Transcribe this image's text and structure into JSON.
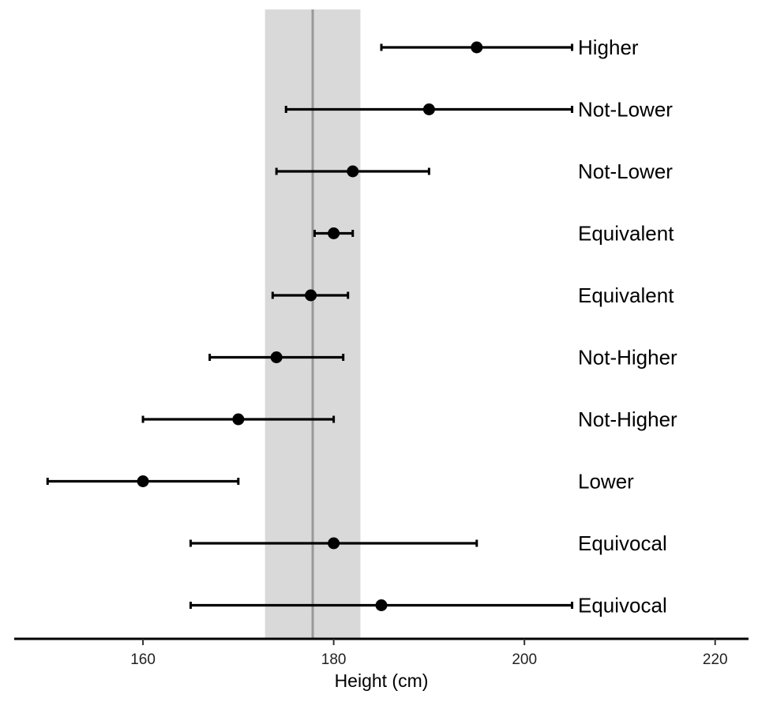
{
  "chart_data": {
    "type": "scatter",
    "xlabel": "Height (cm)",
    "ylabel": "",
    "xlim": [
      146.5,
      223.5
    ],
    "x_ticks": [
      160,
      180,
      200,
      220
    ],
    "x_tick_labels": [
      "160",
      "180",
      "200",
      "220"
    ],
    "reference": {
      "value": 177.8,
      "band": [
        172.8,
        182.8
      ]
    },
    "grid": false,
    "legend": "none",
    "colors": {
      "points": "#000000",
      "band": "#d9d9d9",
      "reference_line": "#999999"
    },
    "series": [
      {
        "label": "Higher",
        "estimate": 195,
        "lower": 185,
        "upper": 205
      },
      {
        "label": "Not-Lower",
        "estimate": 190,
        "lower": 175,
        "upper": 205
      },
      {
        "label": "Not-Lower",
        "estimate": 182,
        "lower": 174,
        "upper": 190
      },
      {
        "label": "Equivalent",
        "estimate": 180,
        "lower": 178,
        "upper": 182
      },
      {
        "label": "Equivalent",
        "estimate": 177.6,
        "lower": 173.6,
        "upper": 181.5
      },
      {
        "label": "Not-Higher",
        "estimate": 174,
        "lower": 167,
        "upper": 181
      },
      {
        "label": "Not-Higher",
        "estimate": 170,
        "lower": 160,
        "upper": 180
      },
      {
        "label": "Lower",
        "estimate": 160,
        "lower": 150,
        "upper": 170
      },
      {
        "label": "Equivocal",
        "estimate": 180,
        "lower": 165,
        "upper": 195
      },
      {
        "label": "Equivocal",
        "estimate": 185,
        "lower": 165,
        "upper": 205
      }
    ]
  }
}
